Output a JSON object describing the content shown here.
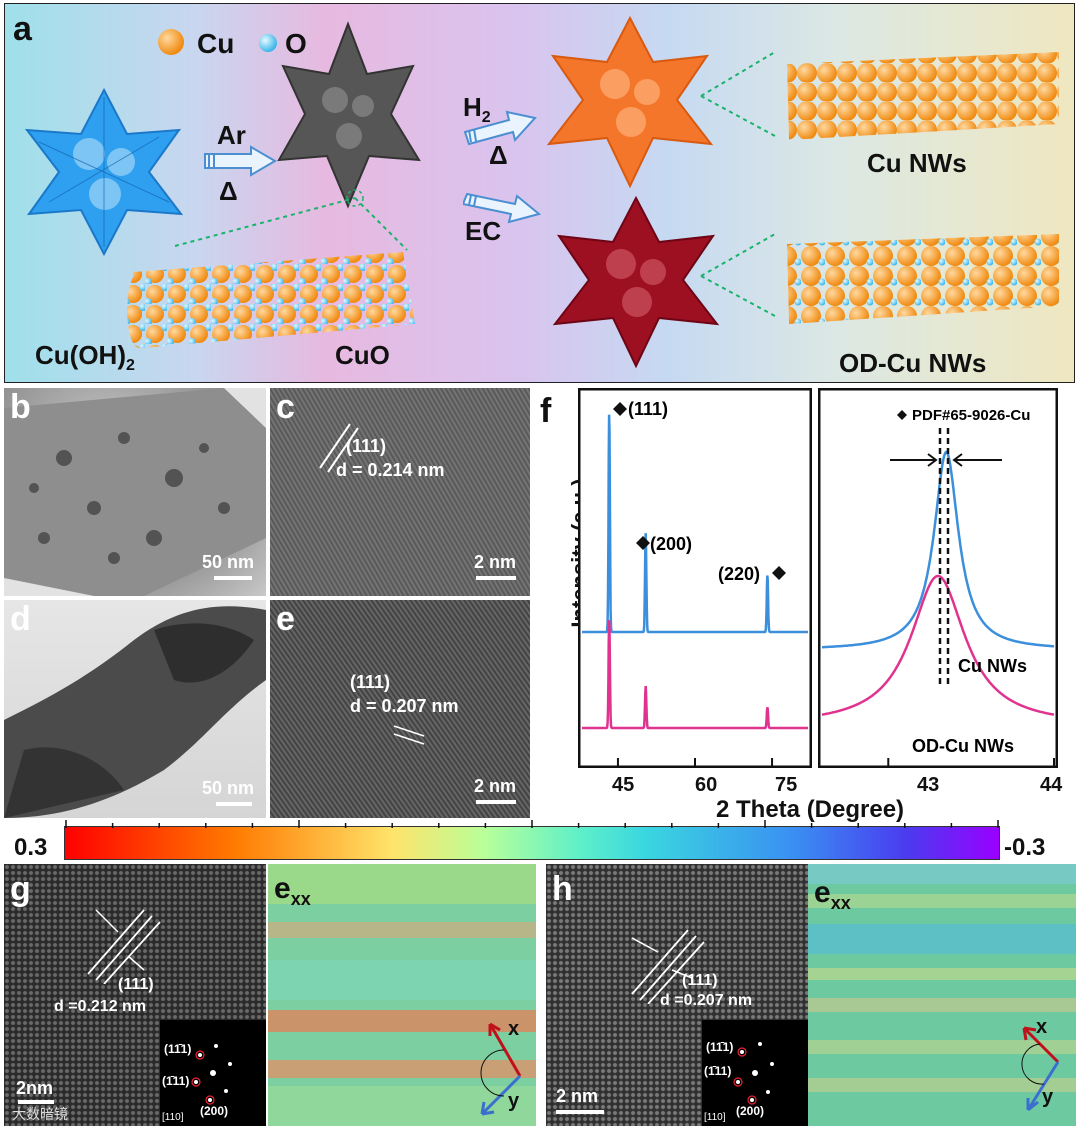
{
  "panel_letters": {
    "a": "a",
    "b": "b",
    "c": "c",
    "d": "d",
    "e": "e",
    "f": "f",
    "g": "g",
    "h": "h"
  },
  "panel_a": {
    "legend_cu": "Cu",
    "legend_o": "O",
    "arrow1_gas": "Ar",
    "arrow1_heat": "Δ",
    "arrow2_gas": "H",
    "arrow2_sub": "2",
    "arrow2_heat": "Δ",
    "arrow3_label": "EC",
    "label_cuoh2": "Cu(OH)",
    "label_cuoh2_sub": "2",
    "label_cuo": "CuO",
    "label_cu_nws": "Cu NWs",
    "label_odcu_nws": "OD-Cu NWs",
    "colors": {
      "cu": "#f7941d",
      "o": "#5bc8ee",
      "cuoh2": "#2f9ff0",
      "cuo": "#555555",
      "cu_nw": "#f4762a",
      "odcu": "#9d1022"
    }
  },
  "panel_b": {
    "scale": "50 nm"
  },
  "panel_c": {
    "plane": "(111)",
    "d": "d = 0.214 nm",
    "scale": "2 nm"
  },
  "panel_d": {
    "scale": "50 nm"
  },
  "panel_e": {
    "plane": "(111)",
    "d": "d = 0.207 nm",
    "scale": "2 nm"
  },
  "panel_f": {
    "ylabel": "Intensity (a.u.)",
    "xlabel": "2 Theta (Degree)",
    "peak_111": "(111)",
    "peak_200": "(200)",
    "peak_220": "(220)",
    "pdf_label": "PDF#65-9026-Cu",
    "cu_label": "Cu NWs",
    "odcu_label": "OD-Cu NWs",
    "left_ticks": [
      "45",
      "60",
      "75"
    ],
    "right_ticks": [
      "43",
      "44"
    ]
  },
  "chart_data": [
    {
      "type": "line",
      "title": "",
      "xlabel": "2 Theta (Degree)",
      "ylabel": "Intensity (a.u.)",
      "xlim": [
        38,
        82
      ],
      "series": [
        {
          "name": "Cu NWs",
          "color": "#3b8fdb",
          "peaks": [
            {
              "x": 43.3,
              "h": 1.0
            },
            {
              "x": 50.4,
              "h": 0.45
            },
            {
              "x": 74.1,
              "h": 0.26
            }
          ]
        },
        {
          "name": "OD-Cu NWs",
          "color": "#e0338f",
          "peaks": [
            {
              "x": 43.3,
              "h": 0.52
            },
            {
              "x": 50.4,
              "h": 0.2
            },
            {
              "x": 74.1,
              "h": 0.1
            }
          ]
        }
      ],
      "annotations": [
        "(111)",
        "(200)",
        "(220)"
      ]
    },
    {
      "type": "line",
      "title": "",
      "xlabel": "2 Theta (Degree)",
      "xlim": [
        42.6,
        44.0
      ],
      "series": [
        {
          "name": "Cu NWs",
          "color": "#3b8fdb",
          "center": 43.35
        },
        {
          "name": "OD-Cu NWs",
          "color": "#e0338f",
          "center": 43.3
        }
      ],
      "annotations": [
        "PDF#65-9026-Cu"
      ]
    }
  ],
  "colorbar": {
    "max": "0.3",
    "min": "-0.3"
  },
  "panel_g": {
    "plane": "(111)",
    "d": "d =0.212 nm",
    "scale": "2nm",
    "strain": "e",
    "strain_sub": "xx",
    "fft_1": "(11̄1)",
    "fft_2": "(1̄11)",
    "fft_3": "(200)",
    "zone": "[110]",
    "axis_x": "x",
    "axis_y": "y"
  },
  "panel_h": {
    "plane": "(111)",
    "d": "d =0.207 nm",
    "scale": "2 nm",
    "strain": "e",
    "strain_sub": "xx",
    "fft_1": "(11̄1)",
    "fft_2": "(1̄11)",
    "fft_3": "(200)",
    "zone": "[110]",
    "axis_x": "x",
    "axis_y": "y"
  },
  "watermark": "大数暗镜"
}
